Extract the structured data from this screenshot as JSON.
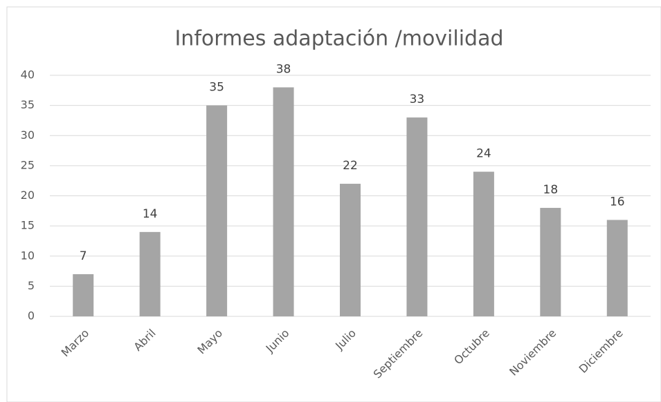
{
  "chart_data": {
    "type": "bar",
    "title": "Informes adaptación /movilidad",
    "categories": [
      "Marzo",
      "Abril",
      "Mayo",
      "Junio",
      "Julio",
      "Septiembre",
      "Octubre",
      "Noviembre",
      "Diciembre"
    ],
    "values": [
      7,
      14,
      35,
      38,
      22,
      33,
      24,
      18,
      16
    ],
    "color": "#a5a5a5",
    "ylim": [
      0,
      40
    ],
    "yticks": [
      0,
      5,
      10,
      15,
      20,
      25,
      30,
      35,
      40
    ],
    "grid": true
  }
}
